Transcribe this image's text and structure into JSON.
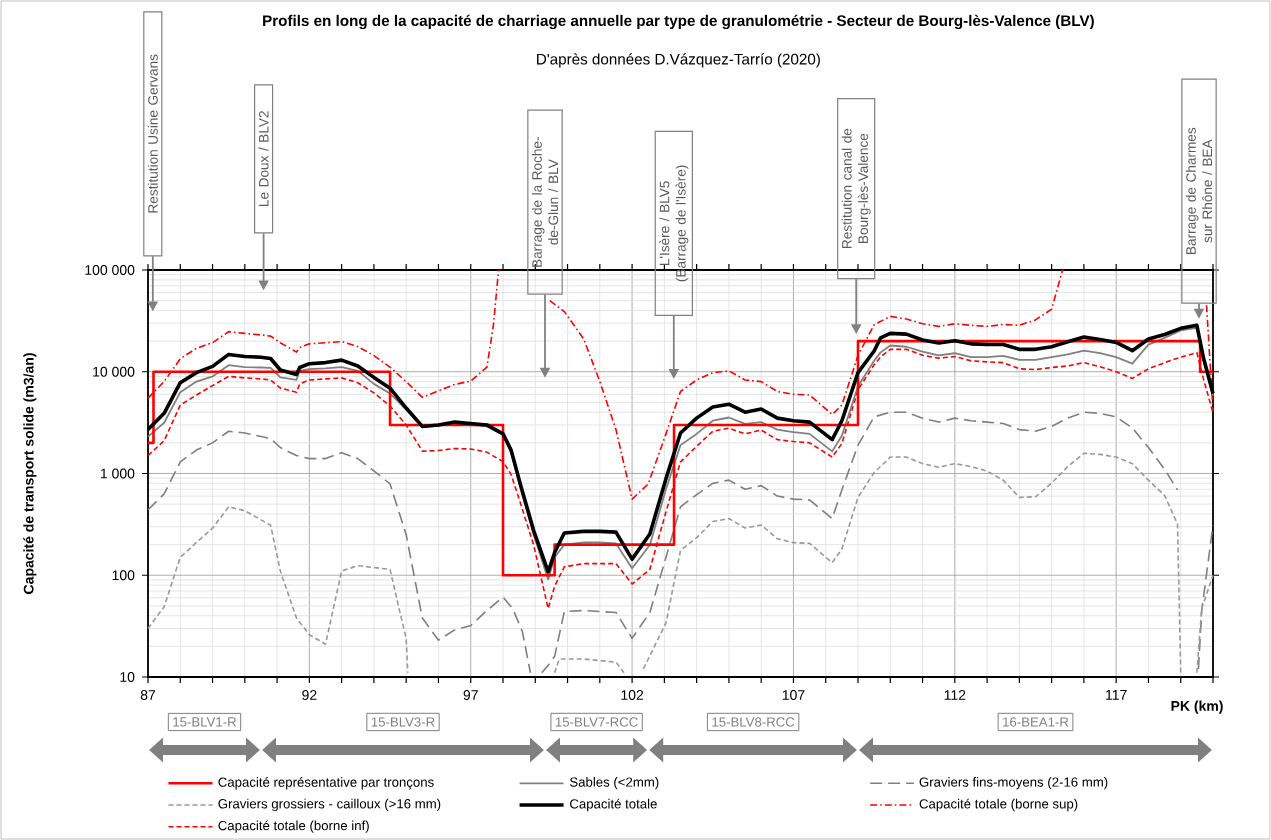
{
  "chart_data": {
    "type": "line",
    "title": "Profils en long de la capacité de charriage annuelle par type de granulométrie - Secteur de Bourg-lès-Valence (BLV)",
    "subtitle": "D'après données D.Vázquez-Tarrío (2020)",
    "xlabel": "PK (km)",
    "ylabel": "Capacité de transport solide (m3/an)",
    "xlim": [
      87,
      120
    ],
    "ylim": [
      10,
      100000
    ],
    "log": "y",
    "grid": true,
    "legend": "bottom",
    "marker": "none",
    "xticks": [
      87,
      {
        "value": 88,
        "label": null
      },
      {
        "value": 89,
        "label": null
      },
      {
        "value": 90,
        "label": null
      },
      {
        "value": 91,
        "label": null
      },
      92,
      {
        "value": 93,
        "label": null
      },
      {
        "value": 94,
        "label": null
      },
      {
        "value": 95,
        "label": null
      },
      {
        "value": 96,
        "label": null
      },
      97,
      {
        "value": 98,
        "label": null
      },
      {
        "value": 99,
        "label": null
      },
      {
        "value": 100,
        "label": null
      },
      {
        "value": 101,
        "label": null
      },
      102,
      {
        "value": 103,
        "label": null
      },
      {
        "value": 104,
        "label": null
      },
      {
        "value": 105,
        "label": null
      },
      {
        "value": 106,
        "label": null
      },
      107,
      {
        "value": 108,
        "label": null
      },
      {
        "value": 109,
        "label": null
      },
      {
        "value": 110,
        "label": null
      },
      {
        "value": 111,
        "label": null
      },
      112,
      {
        "value": 113,
        "label": null
      },
      {
        "value": 114,
        "label": null
      },
      {
        "value": 115,
        "label": null
      },
      {
        "value": 116,
        "label": null
      },
      117,
      {
        "value": 118,
        "label": null
      },
      {
        "value": 119,
        "label": null
      },
      {
        "value": 120,
        "label": null
      }
    ],
    "yticks": [
      10,
      100,
      {
        "value": 1000,
        "label": "1 000"
      },
      {
        "value": 10000,
        "label": "10 000"
      },
      {
        "value": 100000,
        "label": "100 000"
      }
    ],
    "series": [
      {
        "name": "Capacité représentative par tronçons",
        "color": "#ff0000",
        "line_style": "solid",
        "x": [
          87,
          87.17,
          87.17,
          94.5,
          94.5,
          98,
          98,
          99.6,
          99.6,
          103.3,
          103.3,
          109,
          109,
          119.6,
          119.6,
          120
        ],
        "values": [
          2000,
          2000,
          10000,
          10000,
          3000,
          3000,
          100,
          100,
          200,
          200,
          3000,
          3000,
          20000,
          20000,
          10000,
          10000
        ]
      },
      {
        "name": "Sables (<2mm)",
        "color": "#808080",
        "line_style": "solid",
        "x": [
          87,
          87.5,
          88,
          88.5,
          89,
          89.5,
          90,
          90.5,
          90.8,
          91.1,
          91.6,
          91.7,
          92,
          92.5,
          93,
          93.5,
          94,
          94.5,
          95,
          95.5,
          96,
          96.5,
          97,
          97.5,
          98,
          98.25,
          98.55,
          98.95,
          99.4,
          99.6,
          99.9,
          100.5,
          101,
          101.5,
          102,
          102.55,
          103.05,
          103.5,
          104,
          104.5,
          105,
          105.5,
          106,
          106.5,
          107,
          107.5,
          108.2,
          108.5,
          109,
          109.5,
          109.7,
          110,
          110.5,
          111,
          111.5,
          112,
          112.5,
          113,
          113.5,
          114,
          114.5,
          115,
          115.5,
          116,
          116.5,
          117,
          117.5,
          118,
          118.5,
          119,
          119.5,
          119.7,
          120
        ],
        "values": [
          2300,
          3150,
          6300,
          8000,
          9000,
          11600,
          11100,
          11000,
          10900,
          8800,
          8300,
          10200,
          10600,
          10800,
          11100,
          10200,
          7600,
          6100,
          4250,
          2850,
          2950,
          3100,
          3000,
          2900,
          2400,
          1600,
          700,
          250,
          91,
          150,
          200,
          210,
          210,
          205,
          117,
          198,
          700,
          1900,
          2450,
          3300,
          3550,
          3070,
          3200,
          2700,
          2550,
          2450,
          1650,
          2350,
          7200,
          12800,
          15500,
          18100,
          17600,
          15800,
          14500,
          15200,
          13900,
          13900,
          14300,
          13100,
          13100,
          13900,
          14800,
          16100,
          15200,
          13900,
          12000,
          18500,
          21500,
          25500,
          27000,
          13000,
          5800
        ]
      },
      {
        "name": "Graviers fins-moyens (2-16 mm)",
        "color": "#7f7f7f",
        "line_style": "long dashed",
        "x": [
          87,
          87.5,
          88,
          88.5,
          89,
          89.5,
          90,
          90.8,
          91.1,
          91.6,
          92,
          92.5,
          93,
          93.5,
          94,
          94.5,
          95,
          95.5,
          96,
          96.5,
          97,
          97.5,
          98,
          98.3,
          98.6,
          98.85,
          99,
          99.2,
          99.4,
          99.6,
          99.9,
          100.5,
          101.5,
          102,
          102.55,
          103.05,
          103.5,
          104,
          104.5,
          105,
          105.5,
          106,
          106.5,
          107,
          107.5,
          108.2,
          108.5,
          109,
          109.5,
          110,
          110.5,
          111,
          111.5,
          112,
          112.5,
          113,
          113.5,
          114,
          114.5,
          115,
          115.5,
          116,
          116.5,
          117,
          117.5,
          118,
          118.5,
          118.9,
          119,
          119.55,
          119.65,
          120
        ],
        "values": [
          440,
          630,
          1300,
          1700,
          2000,
          2600,
          2500,
          2200,
          1800,
          1500,
          1400,
          1400,
          1600,
          1400,
          1060,
          790,
          250,
          38,
          23,
          29,
          32,
          45,
          61,
          47,
          28,
          11,
          null,
          11,
          13,
          16,
          44,
          45,
          43,
          24,
          43,
          150,
          470,
          620,
          800,
          860,
          700,
          760,
          600,
          560,
          550,
          360,
          690,
          1900,
          3600,
          4000,
          4000,
          3500,
          3200,
          3500,
          3300,
          3200,
          3100,
          2700,
          2600,
          2900,
          3500,
          4000,
          3900,
          3600,
          2800,
          1800,
          1100,
          690,
          null,
          12,
          45,
          310
        ]
      },
      {
        "name": "Graviers grossiers - cailloux (>16 mm)",
        "color": "#999999",
        "line_style": "dashed",
        "x": [
          87,
          87.5,
          88,
          88.5,
          89,
          89.5,
          90,
          90.8,
          91.1,
          91.6,
          92,
          92.5,
          93,
          93.5,
          94,
          94.5,
          94.8,
          95,
          95.05,
          97,
          99.6,
          99.74,
          100.5,
          101.5,
          101.75,
          102,
          102.35,
          103.05,
          103.5,
          104,
          104.5,
          105,
          105.5,
          106,
          106.5,
          107,
          107.5,
          108.2,
          108.5,
          109,
          109.5,
          110,
          110.5,
          111,
          111.5,
          112,
          112.5,
          113,
          113.5,
          114,
          114.5,
          115,
          115.5,
          116,
          116.5,
          117,
          117.5,
          118,
          118.5,
          118.9,
          119,
          119.2,
          119.5,
          119.65,
          120
        ],
        "values": [
          30,
          49,
          150,
          210,
          290,
          470,
          430,
          310,
          110,
          38,
          26,
          21,
          110,
          124,
          119,
          114,
          44,
          24,
          11,
          null,
          11,
          15,
          15,
          14,
          11,
          null,
          12,
          34,
          175,
          234,
          337,
          361,
          291,
          312,
          228,
          209,
          206,
          133,
          181,
          583,
          1020,
          1450,
          1450,
          1250,
          1150,
          1250,
          1170,
          1055,
          860,
          583,
          590,
          805,
          1170,
          1580,
          1540,
          1450,
          1250,
          860,
          610,
          318,
          11,
          null,
          11,
          47,
          100
        ]
      },
      {
        "name": "Capacité totale",
        "color": "#000000",
        "line_style": "solid",
        "x": [
          87,
          87.5,
          88,
          88.5,
          89,
          89.5,
          90,
          90.5,
          90.8,
          91.1,
          91.6,
          91.7,
          92,
          92.5,
          93,
          93.5,
          94,
          94.5,
          95,
          95.5,
          96,
          96.5,
          97,
          97.5,
          98,
          98.25,
          98.55,
          98.95,
          99.4,
          99.6,
          99.9,
          100.5,
          101,
          101.5,
          102,
          102.55,
          103.05,
          103.5,
          104,
          104.5,
          105,
          105.5,
          106,
          106.5,
          107,
          107.5,
          108.2,
          108.5,
          109,
          109.5,
          109.7,
          110,
          110.5,
          111,
          111.5,
          112,
          112.5,
          113,
          113.5,
          114,
          114.5,
          115,
          115.5,
          116,
          116.5,
          117,
          117.5,
          118,
          118.5,
          119,
          119.5,
          119.7,
          120
        ],
        "values": [
          2700,
          3900,
          7800,
          9800,
          11300,
          14800,
          14100,
          13900,
          13500,
          10400,
          9400,
          11000,
          12000,
          12300,
          13000,
          11400,
          8800,
          6900,
          4400,
          2900,
          3000,
          3200,
          3100,
          3000,
          2450,
          1700,
          760,
          275,
          108,
          167,
          260,
          270,
          270,
          265,
          144,
          254,
          890,
          2500,
          3500,
          4500,
          4800,
          4000,
          4300,
          3500,
          3300,
          3200,
          2150,
          3300,
          9800,
          16000,
          21500,
          23800,
          23400,
          20500,
          19200,
          20200,
          18800,
          18500,
          18500,
          16600,
          16600,
          17600,
          19700,
          21900,
          20700,
          19400,
          16100,
          21000,
          23200,
          26700,
          28600,
          13900,
          6100
        ]
      },
      {
        "name": "Capacité totale (borne sup)",
        "color": "#ff0000",
        "line_style": "dash dot",
        "x": [
          87,
          87.5,
          88,
          88.5,
          89,
          89.5,
          90,
          90.5,
          90.8,
          91.1,
          91.6,
          91.7,
          92,
          92.5,
          93,
          93.5,
          94,
          94.5,
          95,
          95.5,
          96,
          96.5,
          97,
          97.5,
          97.7,
          97.85,
          97.88,
          98.5,
          99.45,
          99.9,
          100.5,
          101,
          101.5,
          102,
          102.5,
          103.05,
          103.5,
          104,
          104.5,
          105,
          105.5,
          106,
          106.5,
          107,
          107.5,
          108.2,
          108.5,
          109,
          109.5,
          110,
          110.5,
          111,
          111.5,
          112,
          112.5,
          113,
          113.5,
          114,
          114.5,
          115,
          115.33,
          115.36,
          117,
          119.8,
          120
        ],
        "values": [
          5500,
          8000,
          13400,
          17000,
          19300,
          24800,
          23800,
          23000,
          22400,
          19300,
          15600,
          17300,
          18800,
          19300,
          19800,
          17700,
          14400,
          11100,
          8000,
          5600,
          6500,
          7500,
          8100,
          11100,
          28000,
          91000,
          100000,
          null,
          50000,
          39000,
          21000,
          8000,
          2700,
          560,
          790,
          2450,
          6400,
          8300,
          9800,
          10200,
          8300,
          8000,
          6400,
          6000,
          5900,
          3800,
          4700,
          14500,
          29000,
          35000,
          33000,
          29600,
          27900,
          29600,
          28600,
          27900,
          29100,
          28600,
          32300,
          41200,
          98000,
          100000,
          null,
          45000,
          4100
        ]
      },
      {
        "name": "Capacité totale (borne inf)",
        "color": "#ff0000",
        "line_style": "dashed",
        "x": [
          87,
          87.5,
          88,
          88.5,
          89,
          89.5,
          90,
          90.5,
          90.8,
          91.1,
          91.6,
          91.7,
          92,
          92.5,
          93,
          93.5,
          94,
          94.5,
          95,
          95.5,
          96,
          96.5,
          97,
          97.5,
          98,
          98.25,
          98.55,
          98.95,
          99.4,
          99.6,
          99.9,
          100.5,
          101,
          101.5,
          102,
          102.55,
          103.05,
          103.5,
          104,
          104.5,
          105,
          105.5,
          106,
          106.5,
          107,
          107.5,
          108.2,
          108.5,
          109,
          109.5,
          109.7,
          110,
          110.5,
          111,
          111.5,
          112,
          112.5,
          113,
          113.5,
          114,
          114.5,
          115,
          115.5,
          116,
          116.5,
          117,
          117.5,
          118,
          118.5,
          119,
          119.5,
          119.7,
          120
        ],
        "values": [
          1500,
          2100,
          4700,
          5900,
          7300,
          9000,
          8700,
          8500,
          8300,
          6900,
          6300,
          7600,
          8300,
          8500,
          8700,
          7800,
          6200,
          4600,
          3000,
          1660,
          1680,
          1760,
          1740,
          1620,
          1310,
          980,
          500,
          198,
          47,
          78,
          121,
          130,
          130,
          130,
          82,
          114,
          420,
          1300,
          1850,
          2600,
          2790,
          2450,
          2670,
          2150,
          2060,
          2000,
          1450,
          1970,
          6650,
          11700,
          14000,
          16600,
          16600,
          14500,
          13600,
          14100,
          12800,
          12500,
          12300,
          10700,
          10500,
          11000,
          11400,
          12300,
          11200,
          10000,
          8600,
          10700,
          12300,
          13900,
          15400,
          8600,
          3950
        ]
      }
    ],
    "annotations": [
      "Restitution Usine Gervans",
      "Le Doux / BLV2",
      "Barrage de la Roche-de-Glun / BLV",
      "L'Isère / BLV5 (Barrage de l'Isère)",
      "Restitution canal de Bourg-lès-Valence",
      "Barrage de Charmes sur Rhône / BEA",
      "15-BLV1-R",
      "15-BLV3-R",
      "15-BLV7-RCC",
      "15-BLV8-RCC",
      "16-BEA1-R"
    ]
  }
}
